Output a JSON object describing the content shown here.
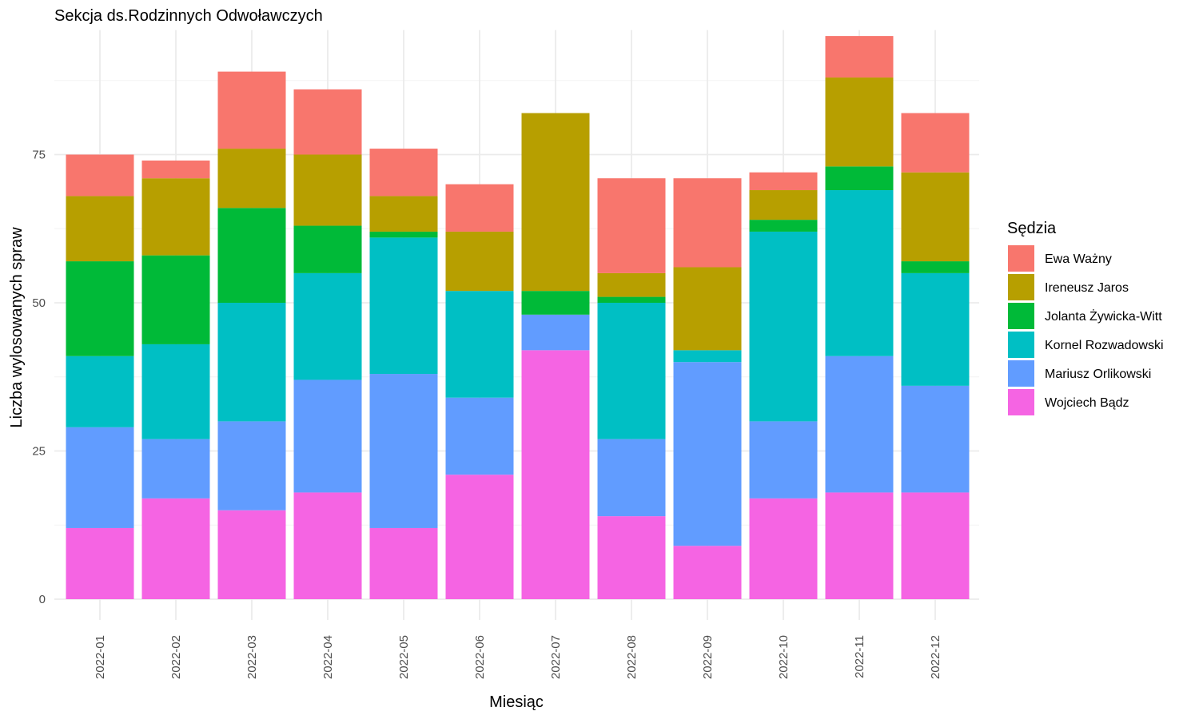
{
  "chart_data": {
    "type": "bar",
    "stacked": true,
    "title": "Sekcja ds.Rodzinnych Odwoławczych",
    "xlabel": "Miesiąc",
    "ylabel": "Liczba wylosowanych spraw",
    "ylim": [
      0,
      96
    ],
    "yticks": [
      0,
      25,
      50,
      75
    ],
    "grid": true,
    "legend_title": "Sędzia",
    "legend_position": "right",
    "categories": [
      "2022-01",
      "2022-02",
      "2022-03",
      "2022-04",
      "2022-05",
      "2022-06",
      "2022-07",
      "2022-08",
      "2022-09",
      "2022-10",
      "2022-11",
      "2022-12"
    ],
    "series": [
      {
        "name": "Ewa Ważny",
        "color": "#F8766D",
        "values": [
          7,
          3,
          13,
          11,
          8,
          8,
          0,
          16,
          15,
          3,
          7,
          10
        ]
      },
      {
        "name": "Ireneusz Jaros",
        "color": "#B79F00",
        "values": [
          11,
          13,
          10,
          12,
          6,
          10,
          30,
          4,
          14,
          5,
          15,
          15
        ]
      },
      {
        "name": "Jolanta Żywicka-Witt",
        "color": "#00BA38",
        "values": [
          16,
          15,
          16,
          8,
          1,
          0,
          4,
          1,
          0,
          2,
          4,
          2
        ]
      },
      {
        "name": "Kornel Rozwadowski",
        "color": "#00BFC4",
        "values": [
          12,
          16,
          20,
          18,
          23,
          18,
          0,
          23,
          2,
          32,
          28,
          19
        ]
      },
      {
        "name": "Mariusz Orlikowski",
        "color": "#619CFF",
        "values": [
          17,
          10,
          15,
          19,
          26,
          13,
          6,
          13,
          31,
          13,
          23,
          18
        ]
      },
      {
        "name": "Wojciech Bądz",
        "color": "#F564E3",
        "values": [
          12,
          17,
          15,
          18,
          12,
          21,
          42,
          14,
          9,
          17,
          18,
          18
        ]
      }
    ]
  }
}
